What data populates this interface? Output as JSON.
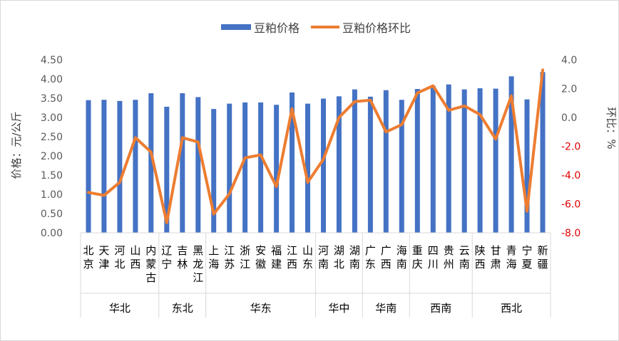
{
  "chart_data": {
    "type": "bar+line",
    "title": "",
    "ylabel_left": "价格：元/公斤",
    "ylabel_right": "环比：%",
    "ylim_left": [
      0.0,
      4.5
    ],
    "ylim_right": [
      -8.0,
      4.0
    ],
    "yticks_left": [
      "0.00",
      "0.50",
      "1.00",
      "1.50",
      "2.00",
      "2.50",
      "3.00",
      "3.50",
      "4.00",
      "4.50"
    ],
    "yticks_right": [
      "-8.0",
      "-6.0",
      "-4.0",
      "-2.0",
      "0.0",
      "2.0",
      "4.0"
    ],
    "legend": {
      "placement": "top",
      "bar_name": "豆粕价格",
      "line_name": "豆粕价格环比"
    },
    "colors": {
      "bar": "#4472c4",
      "line": "#ed7d31",
      "neg_tick": "#e00000",
      "frame": "#d9d9d9"
    },
    "categories": [
      "北京",
      "天津",
      "河北",
      "山西",
      "内蒙古",
      "辽宁",
      "吉林",
      "黑龙江",
      "上海",
      "江苏",
      "浙江",
      "安徽",
      "福建",
      "江西",
      "山东",
      "河南",
      "湖北",
      "湖南",
      "广东",
      "广西",
      "海南",
      "重庆",
      "四川",
      "贵州",
      "云南",
      "陕西",
      "甘肃",
      "青海",
      "宁夏",
      "新疆"
    ],
    "groups": [
      {
        "name": "华北",
        "count": 5
      },
      {
        "name": "东北",
        "count": 3
      },
      {
        "name": "华东",
        "count": 7
      },
      {
        "name": "华中",
        "count": 3
      },
      {
        "name": "华南",
        "count": 3
      },
      {
        "name": "西南",
        "count": 4
      },
      {
        "name": "西北",
        "count": 5
      }
    ],
    "series": [
      {
        "name": "豆粕价格",
        "type": "bar",
        "axis": "left",
        "values": [
          3.45,
          3.46,
          3.43,
          3.46,
          3.63,
          3.28,
          3.63,
          3.53,
          3.22,
          3.36,
          3.39,
          3.39,
          3.33,
          3.65,
          3.36,
          3.49,
          3.55,
          3.73,
          3.54,
          3.71,
          3.46,
          3.74,
          3.82,
          3.86,
          3.73,
          3.76,
          3.75,
          4.07,
          3.47,
          4.18
        ]
      },
      {
        "name": "豆粕价格环比",
        "type": "line",
        "axis": "right",
        "values": [
          -5.2,
          -5.4,
          -4.5,
          -1.4,
          -2.4,
          -7.3,
          -1.4,
          -1.7,
          -6.7,
          -5.3,
          -2.8,
          -2.6,
          -4.8,
          0.6,
          -4.5,
          -2.9,
          0.0,
          1.1,
          1.2,
          -1.0,
          -0.5,
          1.7,
          2.2,
          0.5,
          0.8,
          0.2,
          -1.5,
          1.5,
          -6.5,
          3.3
        ]
      }
    ]
  }
}
